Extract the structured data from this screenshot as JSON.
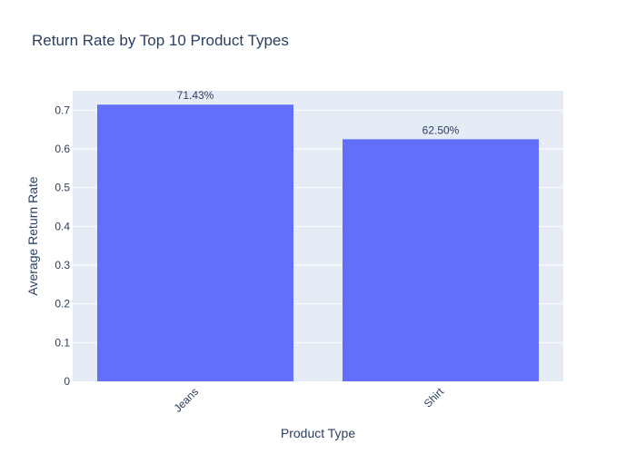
{
  "chart_data": {
    "type": "bar",
    "title": "Return Rate by Top 10 Product Types",
    "xlabel": "Product Type",
    "ylabel": "Average Return Rate",
    "categories": [
      "Jeans",
      "Shirt"
    ],
    "values": [
      0.7143,
      0.625
    ],
    "data_labels": [
      "71.43%",
      "62.50%"
    ],
    "ylim": [
      0,
      0.75
    ],
    "yticks": [
      0,
      0.1,
      0.2,
      0.3,
      0.4,
      0.5,
      0.6,
      0.7
    ],
    "ytick_labels": [
      "0",
      "0.1",
      "0.2",
      "0.3",
      "0.4",
      "0.5",
      "0.6",
      "0.7"
    ],
    "grid": true,
    "colors": {
      "bar": "#636efa",
      "plot_bg": "#e5ecf6",
      "grid": "#ffffff",
      "text": "#2a3f5f"
    }
  }
}
